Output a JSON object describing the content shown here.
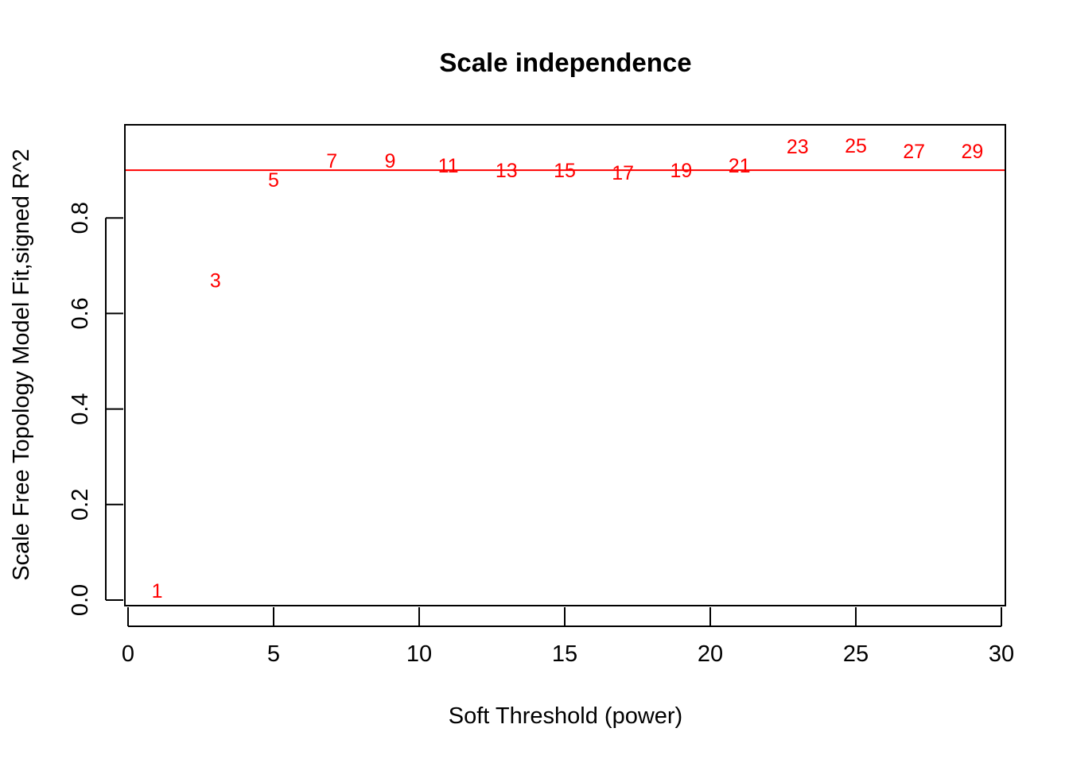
{
  "chart_data": {
    "type": "scatter",
    "title": "Scale independence",
    "xlabel": "Soft Threshold (power)",
    "ylabel": "Scale Free Topology Model Fit,signed R^2",
    "xlim": [
      0,
      30
    ],
    "ylim": [
      0,
      1
    ],
    "x_ticks": [
      "0",
      "5",
      "10",
      "15",
      "20",
      "25",
      "30"
    ],
    "y_ticks": [
      "0.0",
      "0.2",
      "0.4",
      "0.6",
      "0.8"
    ],
    "points": [
      {
        "x": 1,
        "y": 0.02,
        "label": "1"
      },
      {
        "x": 3,
        "y": 0.67,
        "label": "3"
      },
      {
        "x": 5,
        "y": 0.88,
        "label": "5"
      },
      {
        "x": 7,
        "y": 0.92,
        "label": "7"
      },
      {
        "x": 9,
        "y": 0.92,
        "label": "9"
      },
      {
        "x": 11,
        "y": 0.91,
        "label": "11"
      },
      {
        "x": 13,
        "y": 0.9,
        "label": "13"
      },
      {
        "x": 15,
        "y": 0.9,
        "label": "15"
      },
      {
        "x": 17,
        "y": 0.895,
        "label": "17"
      },
      {
        "x": 19,
        "y": 0.9,
        "label": "19"
      },
      {
        "x": 21,
        "y": 0.91,
        "label": "21"
      },
      {
        "x": 23,
        "y": 0.95,
        "label": "23"
      },
      {
        "x": 25,
        "y": 0.952,
        "label": "25"
      },
      {
        "x": 27,
        "y": 0.94,
        "label": "27"
      },
      {
        "x": 29,
        "y": 0.94,
        "label": "29"
      }
    ],
    "reference_line": {
      "y": 0.9,
      "color": "#ff0000"
    },
    "point_color": "#ff0000",
    "grid": false,
    "legend": "none"
  }
}
